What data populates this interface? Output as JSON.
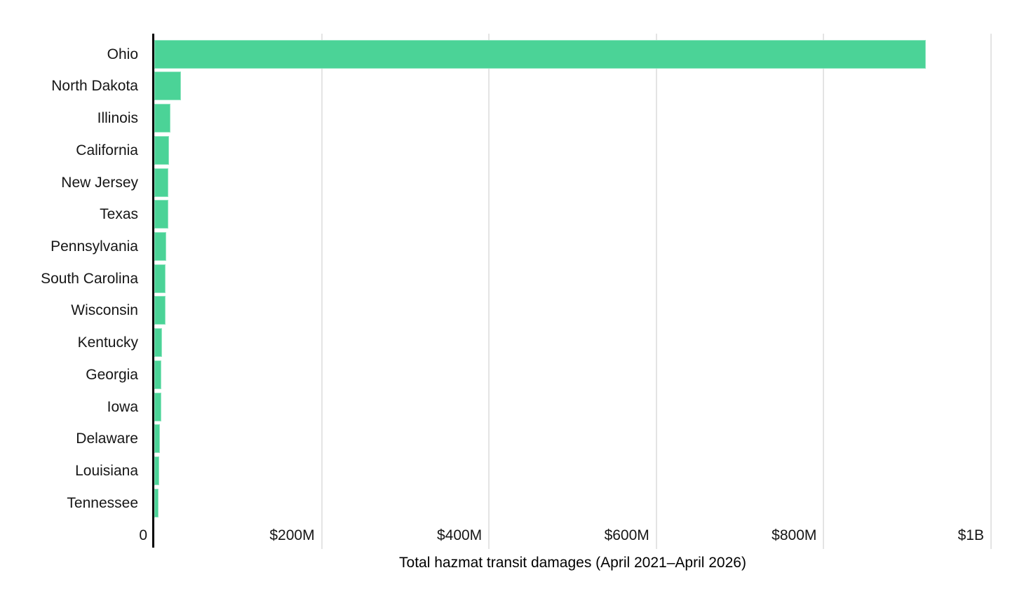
{
  "chart_data": {
    "type": "bar",
    "orientation": "horizontal",
    "title": "",
    "xlabel": "Total hazmat transit damages (April 2021–April 2026)",
    "ylabel": "",
    "unit": "millions of USD",
    "xlim": [
      0,
      1000
    ],
    "grid": "vertical",
    "legend": "none",
    "categories": [
      "Ohio",
      "North Dakota",
      "Illinois",
      "California",
      "New Jersey",
      "Texas",
      "Pennsylvania",
      "South Carolina",
      "Wisconsin",
      "Kentucky",
      "Georgia",
      "Iowa",
      "Delaware",
      "Louisiana",
      "Tennessee"
    ],
    "values": [
      922,
      32,
      19,
      17.5,
      17,
      17,
      14.5,
      13.5,
      13,
      9,
      8.5,
      8,
      7,
      6,
      5
    ],
    "x_ticks": [
      {
        "value": 0,
        "label": "0"
      },
      {
        "value": 200,
        "label": "$200M"
      },
      {
        "value": 400,
        "label": "$400M"
      },
      {
        "value": 600,
        "label": "$600M"
      },
      {
        "value": 800,
        "label": "$800M"
      },
      {
        "value": 1000,
        "label": "$1B"
      }
    ],
    "colors": {
      "bar_fill": "#4bd397",
      "bar_stroke": "#90e5c0",
      "gridline": "#e4e4e4",
      "axis_line": "#000000",
      "text": "#161616"
    }
  }
}
